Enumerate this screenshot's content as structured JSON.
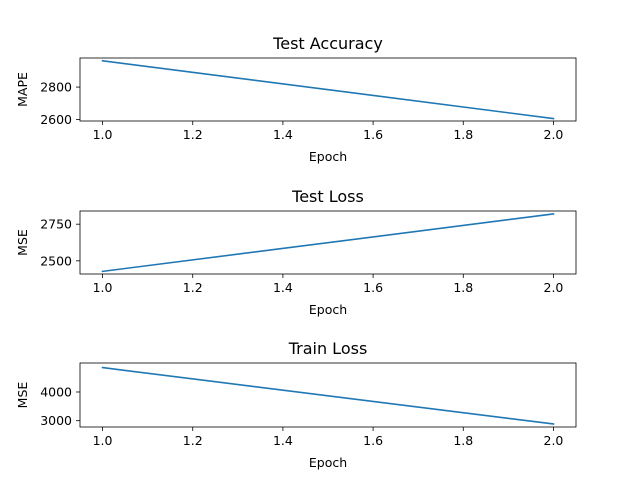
{
  "chart_data": [
    {
      "type": "line",
      "title": "Test Accuracy",
      "xlabel": "Epoch",
      "ylabel": "MAPE",
      "xlim": [
        0.95,
        2.05
      ],
      "ylim": [
        2590,
        2980
      ],
      "xticks": [
        1.0,
        1.2,
        1.4,
        1.6,
        1.8,
        2.0
      ],
      "xtick_labels": [
        "1.0",
        "1.2",
        "1.4",
        "1.6",
        "1.8",
        "2.0"
      ],
      "yticks": [
        2600,
        2800
      ],
      "ytick_labels": [
        "2600",
        "2800"
      ],
      "grid": false,
      "series": [
        {
          "color": "#1f77b4",
          "x": [
            1.0,
            2.0
          ],
          "y": [
            2963,
            2605
          ]
        }
      ]
    },
    {
      "type": "line",
      "title": "Test Loss",
      "xlabel": "Epoch",
      "ylabel": "MSE",
      "xlim": [
        0.95,
        2.05
      ],
      "ylim": [
        2410,
        2840
      ],
      "xticks": [
        1.0,
        1.2,
        1.4,
        1.6,
        1.8,
        2.0
      ],
      "xtick_labels": [
        "1.0",
        "1.2",
        "1.4",
        "1.6",
        "1.8",
        "2.0"
      ],
      "yticks": [
        2500,
        2750
      ],
      "ytick_labels": [
        "2500",
        "2750"
      ],
      "grid": false,
      "series": [
        {
          "color": "#1f77b4",
          "x": [
            1.0,
            2.0
          ],
          "y": [
            2428,
            2820
          ]
        }
      ]
    },
    {
      "type": "line",
      "title": "Train Loss",
      "xlabel": "Epoch",
      "ylabel": "MSE",
      "xlim": [
        0.95,
        2.05
      ],
      "ylim": [
        2780,
        5010
      ],
      "xticks": [
        1.0,
        1.2,
        1.4,
        1.6,
        1.8,
        2.0
      ],
      "xtick_labels": [
        "1.0",
        "1.2",
        "1.4",
        "1.6",
        "1.8",
        "2.0"
      ],
      "yticks": [
        3000,
        4000
      ],
      "ytick_labels": [
        "3000",
        "4000"
      ],
      "grid": false,
      "series": [
        {
          "color": "#1f77b4",
          "x": [
            1.0,
            2.0
          ],
          "y": [
            4850,
            2885
          ]
        }
      ]
    }
  ]
}
